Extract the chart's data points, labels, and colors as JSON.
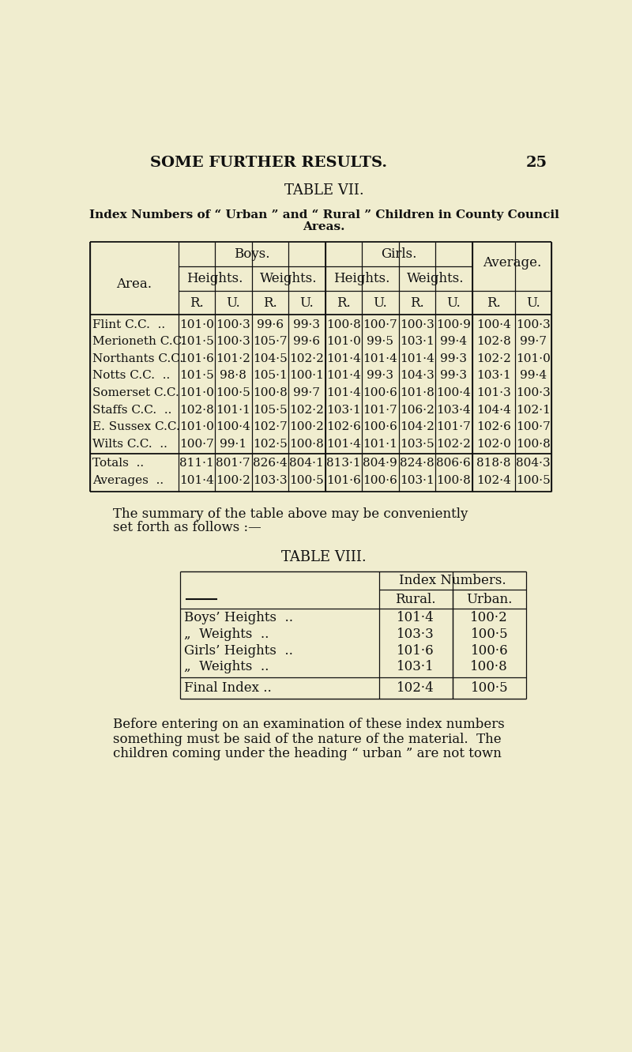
{
  "bg_color": "#f0edcf",
  "text_color": "#111111",
  "page_header": "SOME FURTHER RESULTS.",
  "page_number": "25",
  "table7_title": "TABLE VII.",
  "table7_subtitle_line1": "Index Numbers of “ Urban ” and “ Rural ” Children in County Council",
  "table7_subtitle_line2": "Areas.",
  "table7_rows": [
    [
      "Flint C.C.  ..",
      "101·0",
      "100·3",
      "99·6",
      "99·3",
      "100·8",
      "100·7",
      "100·3",
      "100·9",
      "100·4",
      "100·3"
    ],
    [
      "Merioneth C.C.",
      "101·5",
      "100·3",
      "105·7",
      "99·6",
      "101·0",
      "99·5",
      "103·1",
      "99·4",
      "102·8",
      "99·7"
    ],
    [
      "Northants C.C.",
      "101·6",
      "101·2",
      "104·5",
      "102·2",
      "101·4",
      "101·4",
      "101·4",
      "99·3",
      "102·2",
      "101·0"
    ],
    [
      "Notts C.C.  ..",
      "101·5",
      "98·8",
      "105·1",
      "100·1",
      "101·4",
      "99·3",
      "104·3",
      "99·3",
      "103·1",
      "99·4"
    ],
    [
      "Somerset C.C.",
      "101·0",
      "100·5",
      "100·8",
      "99·7",
      "101·4",
      "100·6",
      "101·8",
      "100·4",
      "101·3",
      "100·3"
    ],
    [
      "Staffs C.C.  ..",
      "102·8",
      "101·1",
      "105·5",
      "102·2",
      "103·1",
      "101·7",
      "106·2",
      "103·4",
      "104·4",
      "102·1"
    ],
    [
      "E. Sussex C.C.",
      "101·0",
      "100·4",
      "102·7",
      "100·2",
      "102·6",
      "100·6",
      "104·2",
      "101·7",
      "102·6",
      "100·7"
    ],
    [
      "Wilts C.C.  ..",
      "100·7",
      "99·1",
      "102·5",
      "100·8",
      "101·4",
      "101·1",
      "103·5",
      "102·2",
      "102·0",
      "100·8"
    ]
  ],
  "table7_totals": [
    "Totals  ..",
    "811·1",
    "801·7",
    "826·4",
    "804·1",
    "813·1",
    "804·9",
    "824·8",
    "806·6",
    "818·8",
    "804·3"
  ],
  "table7_averages": [
    "Averages  ..",
    "101·4",
    "100·2",
    "103·3",
    "100·5",
    "101·6",
    "100·6",
    "103·1",
    "100·8",
    "102·4",
    "100·5"
  ],
  "summary_line1": "The summary of the table above may be conveniently",
  "summary_line2": "set forth as follows :—",
  "table8_title": "TABLE VIII.",
  "table8_header": "Index Numbers.",
  "table8_col1": "Rural.",
  "table8_col2": "Urban.",
  "table8_row_labels": [
    "Boys’ Heights  ..",
    "„  Weights  ..",
    "Girls’ Heights  ..",
    "„  Weights  .."
  ],
  "table8_rural": [
    "101·4",
    "103·3",
    "101·6",
    "103·1"
  ],
  "table8_urban": [
    "100·2",
    "100·5",
    "100·6",
    "100·8"
  ],
  "table8_final_label": "Final Index ..",
  "table8_final_rural": "102·4",
  "table8_final_urban": "100·5",
  "footer_line1": "Before entering on an examination of these index numbers",
  "footer_line2": "something must be said of the nature of the material.  The",
  "footer_line3": "children coming under the heading “ urban ” are not town"
}
